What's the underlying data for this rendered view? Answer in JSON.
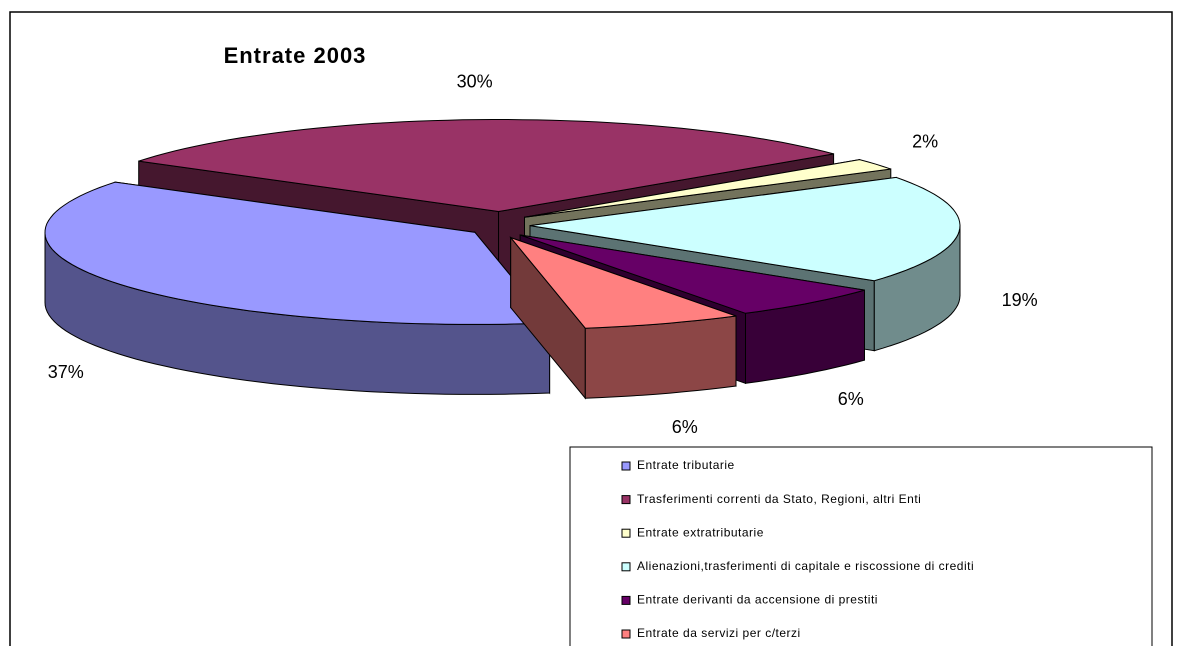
{
  "chart_data": {
    "type": "pie",
    "title": "Entrate 2003",
    "categories": [
      "Entrate tributarie",
      "Trasferimenti correnti da Stato, Regioni, altri Enti",
      "Entrate extratributarie",
      "Alienazioni,trasferimenti di capitale e riscossione di crediti",
      "Entrate derivanti da accensione di prestiti",
      "Entrate da servizi per c/terzi"
    ],
    "values": [
      37,
      30,
      2,
      19,
      6,
      6
    ],
    "value_labels": [
      "37%",
      "30%",
      "2%",
      "19%",
      "6%",
      "6%"
    ],
    "colors": [
      "#9999ff",
      "#993366",
      "#ffffcc",
      "#ccffff",
      "#660066",
      "#ff8080"
    ]
  }
}
